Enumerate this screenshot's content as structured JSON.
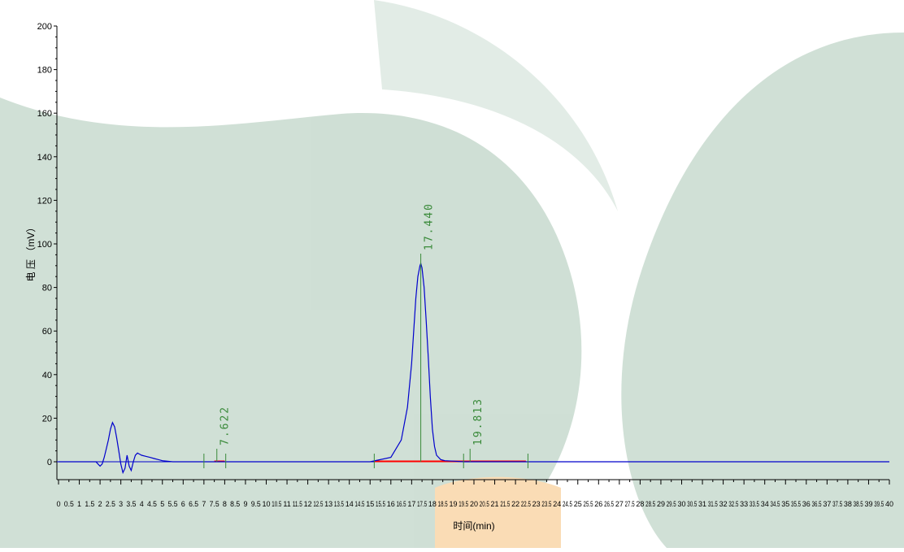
{
  "chart_data": {
    "type": "line",
    "xlabel": "时间(min)",
    "ylabel": "电 压 （mV）",
    "xlim": [
      0,
      40
    ],
    "ylim": [
      -10,
      200
    ],
    "yticks": [
      0,
      20,
      40,
      60,
      80,
      100,
      120,
      140,
      160,
      180,
      200
    ],
    "xticks": [
      "0",
      "0.5",
      "1",
      "1.5",
      "2",
      "2.5",
      "3",
      "3.5",
      "4",
      "4.5",
      "5",
      "5.5",
      "6",
      "6.5",
      "7",
      "7.5",
      "8",
      "8.5",
      "9",
      "9.5",
      "10",
      "10.5",
      "11",
      "11.5",
      "12",
      "12.5",
      "13",
      "13.5",
      "14",
      "14.5",
      "15",
      "15.5",
      "16",
      "16.5",
      "17",
      "17.5",
      "18",
      "18.5",
      "19",
      "19.5",
      "20",
      "20.5",
      "21",
      "21.5",
      "22",
      "22.5",
      "23",
      "23.5",
      "24",
      "24.5",
      "25",
      "25.5",
      "26",
      "26.5",
      "27",
      "27.5",
      "28",
      "28.5",
      "29",
      "29.5",
      "30",
      "30.5",
      "31",
      "31.5",
      "32",
      "32.5",
      "33",
      "33.5",
      "34",
      "34.5",
      "35",
      "35.5",
      "36",
      "36.5",
      "37",
      "37.5",
      "38",
      "38.5",
      "39",
      "39.5",
      "40"
    ],
    "series": [
      {
        "color": "#0000cc",
        "x": [
          0,
          1.8,
          1.9,
          2.0,
          2.1,
          2.2,
          2.3,
          2.4,
          2.5,
          2.6,
          2.7,
          2.8,
          2.9,
          3.0,
          3.1,
          3.2,
          3.3,
          3.4,
          3.5,
          3.6,
          3.7,
          3.8,
          3.9,
          4.0,
          4.2,
          4.4,
          4.6,
          4.8,
          5.0,
          5.2,
          5.5,
          6.0,
          15.0,
          16.0,
          16.5,
          16.8,
          17.0,
          17.1,
          17.2,
          17.3,
          17.4,
          17.44,
          17.5,
          17.6,
          17.7,
          17.8,
          17.9,
          18.0,
          18.1,
          18.2,
          18.4,
          18.6,
          19.0,
          19.5,
          20.0,
          40
        ],
        "y": [
          0,
          0,
          -1,
          -2,
          -1,
          2,
          6,
          10,
          15,
          18,
          16,
          11,
          5,
          -1,
          -5,
          -3,
          3,
          -2,
          -4,
          0,
          3,
          4,
          3.5,
          3,
          2.5,
          2,
          1.5,
          1,
          0.5,
          0.3,
          0,
          0,
          0,
          2,
          10,
          25,
          45,
          60,
          75,
          85,
          90,
          91,
          89,
          80,
          65,
          48,
          30,
          15,
          7,
          3,
          1,
          0.5,
          0.3,
          0,
          0,
          0
        ]
      }
    ],
    "baseline_segments": [
      {
        "x": [
          7.5,
          8.0
        ],
        "color": "#ff0000"
      },
      {
        "x": [
          15.2,
          22.5
        ],
        "color": "#ff0000"
      }
    ],
    "peaks": [
      {
        "label": "7.622",
        "x": 7.622
      },
      {
        "label": "17.440",
        "x": 17.44
      },
      {
        "label": "19.813",
        "x": 19.813
      }
    ]
  }
}
